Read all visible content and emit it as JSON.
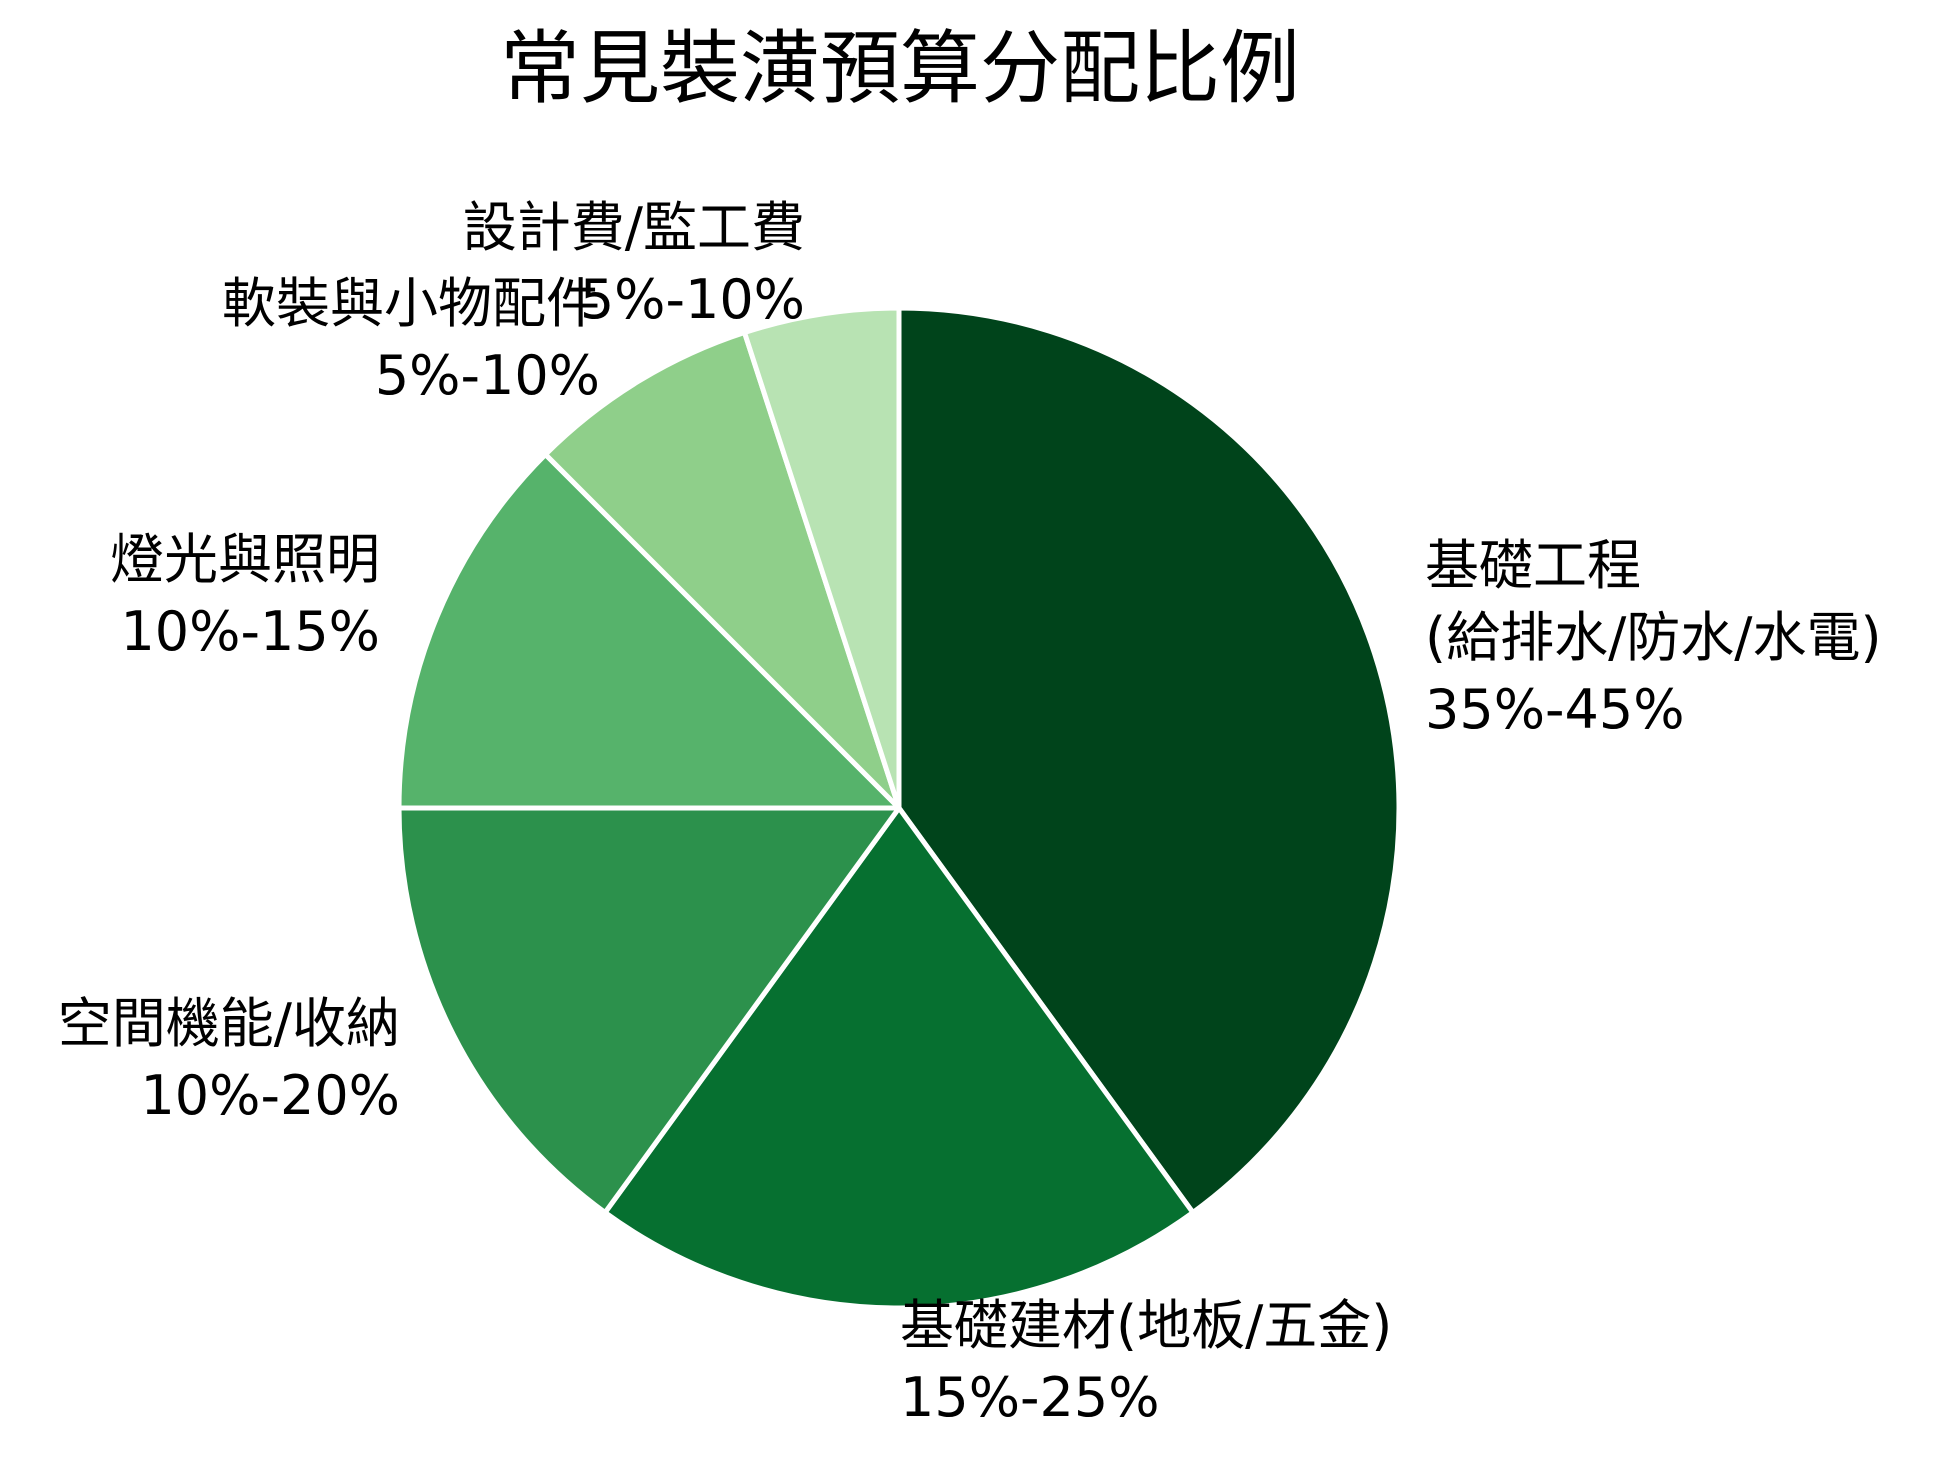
{
  "chart_data": {
    "type": "pie",
    "title": "常見裝潢預算分配比例",
    "start_angle": "12 o'clock, clockwise",
    "slices": [
      {
        "name": "基礎工程(給排水/防水/水電)",
        "label_lines": [
          "基礎工程",
          "(給排水/防水/水電)",
          "35%-45%"
        ],
        "range": "35%-45%",
        "value": 40,
        "color": "#00441b"
      },
      {
        "name": "基礎建材(地板/五金)",
        "label_lines": [
          "基礎建材(地板/五金)",
          "15%-25%"
        ],
        "range": "15%-25%",
        "value": 20,
        "color": "#067030"
      },
      {
        "name": "空間機能/收納",
        "label_lines": [
          "空間機能/收納",
          "10%-20%"
        ],
        "range": "10%-20%",
        "value": 15,
        "color": "#2c914c"
      },
      {
        "name": "燈光與照明",
        "label_lines": [
          "燈光與照明",
          "10%-15%"
        ],
        "range": "10%-15%",
        "value": 12.5,
        "color": "#56b36b"
      },
      {
        "name": "軟裝與小物配件",
        "label_lines": [
          "軟裝與小物配件",
          "5%-10%"
        ],
        "range": "5%-10%",
        "value": 7.5,
        "color": "#8fcf8a"
      },
      {
        "name": "設計費/監工費",
        "label_lines": [
          "設計費/監工費",
          "5%-10%"
        ],
        "range": "5%-10%",
        "value": 5,
        "color": "#b8e3b3"
      }
    ],
    "legend": "none (labels placed beside slices)",
    "edge_color": "#ffffff"
  },
  "labels": {
    "foundation": {
      "l1": "基礎工程",
      "l2": "(給排水/防水/水電)",
      "l3": "35%-45%"
    },
    "materials": {
      "l1": "基礎建材(地板/五金)",
      "l2": "15%-25%"
    },
    "storage": {
      "l1": "空間機能/收納",
      "l2": "10%-20%"
    },
    "lighting": {
      "l1": "燈光與照明",
      "l2": "10%-15%"
    },
    "decor": {
      "l1": "軟裝與小物配件",
      "l2": "5%-10%"
    },
    "design": {
      "l1": "設計費/監工費",
      "l2": "5%-10%"
    }
  }
}
